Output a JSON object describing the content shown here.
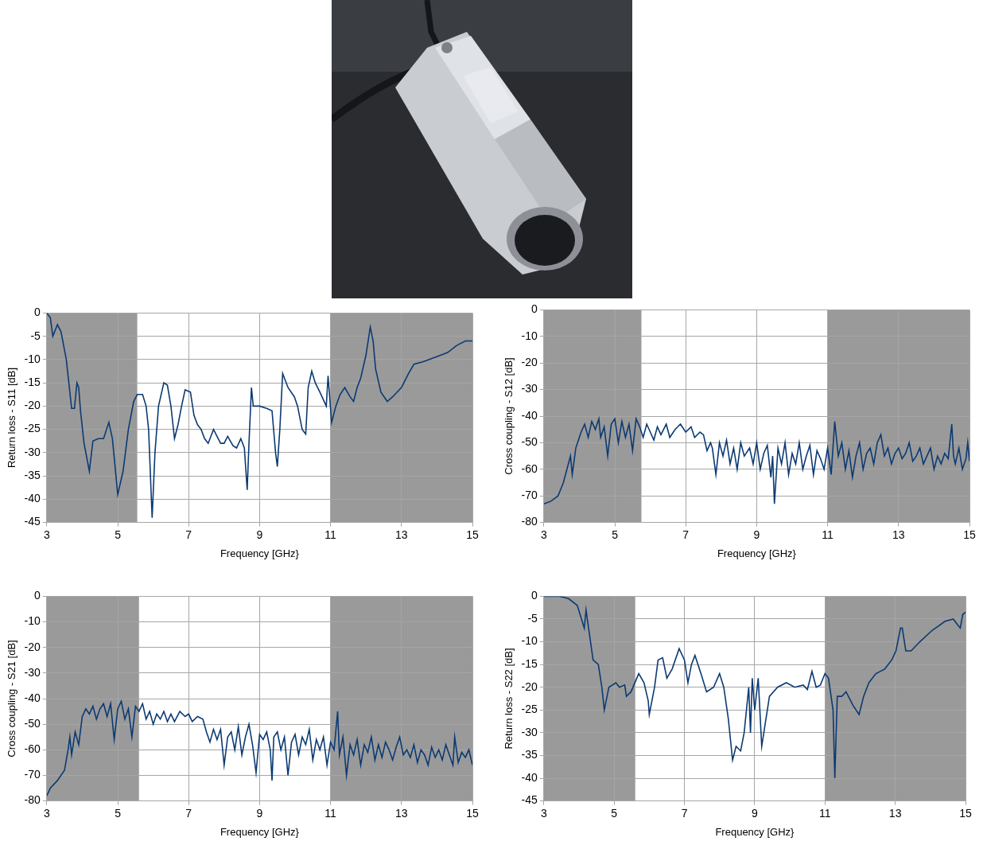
{
  "chart_data": [
    {
      "type": "line",
      "x_label": "Frequency [GHz}",
      "y_label": "Return loss - S11 [dB]",
      "color": "#0b3a73",
      "grid": true,
      "xlim": [
        3,
        15
      ],
      "xticks": [
        3,
        5,
        7,
        9,
        11,
        13,
        15
      ],
      "ylim": [
        -45,
        0
      ],
      "yticks": [
        0,
        -5,
        -10,
        -15,
        -20,
        -25,
        -30,
        -35,
        -40,
        -45
      ],
      "shaded_bands": [
        [
          3,
          5.55
        ],
        [
          11,
          15
        ]
      ],
      "x": [
        3.0,
        3.1,
        3.17,
        3.3,
        3.4,
        3.55,
        3.7,
        3.78,
        3.85,
        3.9,
        3.95,
        4.05,
        4.2,
        4.3,
        4.45,
        4.6,
        4.75,
        4.85,
        5.0,
        5.15,
        5.3,
        5.45,
        5.55,
        5.7,
        5.8,
        5.87,
        5.97,
        6.05,
        6.15,
        6.3,
        6.4,
        6.5,
        6.6,
        6.7,
        6.8,
        6.9,
        7.05,
        7.15,
        7.25,
        7.35,
        7.45,
        7.55,
        7.7,
        7.9,
        8.0,
        8.1,
        8.25,
        8.35,
        8.47,
        8.57,
        8.65,
        8.7,
        8.77,
        8.82,
        9.0,
        9.2,
        9.35,
        9.45,
        9.5,
        9.57,
        9.65,
        9.8,
        9.98,
        10.07,
        10.2,
        10.3,
        10.37,
        10.47,
        10.57,
        10.7,
        10.88,
        10.93,
        11.03,
        11.15,
        11.27,
        11.4,
        11.55,
        11.65,
        11.75,
        11.85,
        12.0,
        12.12,
        12.2,
        12.27,
        12.42,
        12.6,
        12.75,
        13.0,
        13.2,
        13.35,
        13.6,
        13.95,
        14.3,
        14.55,
        14.8,
        15.0
      ],
      "values": [
        0,
        -1,
        -5,
        -2.5,
        -4,
        -10,
        -20.5,
        -20.5,
        -15,
        -16,
        -21,
        -28,
        -34,
        -27.5,
        -27,
        -27,
        -23.5,
        -27,
        -39,
        -34,
        -25,
        -19,
        -17.5,
        -17.5,
        -20,
        -25,
        -44,
        -30,
        -20,
        -15,
        -15.5,
        -20,
        -27,
        -24,
        -20,
        -16.5,
        -17,
        -22,
        -24,
        -25,
        -27,
        -28,
        -25,
        -28,
        -28,
        -26.5,
        -28.5,
        -29,
        -27,
        -29,
        -38,
        -28,
        -16,
        -20,
        -20,
        -20.5,
        -21,
        -30,
        -33,
        -25,
        -13,
        -16,
        -18,
        -20,
        -25,
        -26,
        -16,
        -12.5,
        -15,
        -17,
        -20,
        -13.5,
        -23.5,
        -20,
        -17.5,
        -16,
        -18,
        -19,
        -16,
        -14,
        -9,
        -3,
        -6,
        -12,
        -17,
        -19,
        -18,
        -16,
        -13,
        -11,
        -10.5,
        -9.5,
        -8.5,
        -7,
        -6,
        -6
      ]
    },
    {
      "type": "line",
      "x_label": "Frequency [GHz}",
      "y_label": "Cross coupling - S12 [dB]",
      "color": "#0b3a73",
      "grid": true,
      "xlim": [
        3,
        15
      ],
      "xticks": [
        3,
        5,
        7,
        9,
        11,
        13,
        15
      ],
      "ylim": [
        -80,
        0
      ],
      "yticks": [
        0,
        -10,
        -20,
        -30,
        -40,
        -50,
        -60,
        -70,
        -80
      ],
      "shaded_bands": [
        [
          3,
          5.75
        ],
        [
          11,
          15
        ]
      ],
      "x": [
        3.0,
        3.2,
        3.4,
        3.55,
        3.65,
        3.75,
        3.8,
        3.9,
        4.0,
        4.05,
        4.15,
        4.25,
        4.35,
        4.45,
        4.55,
        4.6,
        4.7,
        4.8,
        4.9,
        5.0,
        5.1,
        5.2,
        5.3,
        5.4,
        5.5,
        5.6,
        5.7,
        5.8,
        5.9,
        6.0,
        6.1,
        6.2,
        6.3,
        6.45,
        6.55,
        6.7,
        6.85,
        7.0,
        7.15,
        7.25,
        7.4,
        7.5,
        7.6,
        7.7,
        7.75,
        7.85,
        7.95,
        8.05,
        8.15,
        8.25,
        8.35,
        8.45,
        8.55,
        8.65,
        8.8,
        8.9,
        9.0,
        9.1,
        9.2,
        9.3,
        9.4,
        9.45,
        9.5,
        9.6,
        9.7,
        9.8,
        9.9,
        10.0,
        10.1,
        10.2,
        10.3,
        10.4,
        10.5,
        10.6,
        10.7,
        10.8,
        10.9,
        11.0,
        11.1,
        11.2,
        11.3,
        11.4,
        11.5,
        11.6,
        11.7,
        11.8,
        11.9,
        12.0,
        12.1,
        12.2,
        12.3,
        12.4,
        12.5,
        12.6,
        12.7,
        12.8,
        12.9,
        13.0,
        13.1,
        13.2,
        13.3,
        13.4,
        13.5,
        13.6,
        13.7,
        13.8,
        13.9,
        14.0,
        14.1,
        14.2,
        14.3,
        14.4,
        14.5,
        14.55,
        14.6,
        14.7,
        14.8,
        14.9,
        14.95,
        15.0
      ],
      "values": [
        -73,
        -72,
        -70,
        -65,
        -60,
        -55,
        -62,
        -52,
        -48,
        -46,
        -43,
        -48,
        -42,
        -45,
        -41,
        -48,
        -44,
        -55,
        -43,
        -41,
        -50,
        -42,
        -48,
        -43,
        -53,
        -41,
        -44,
        -48,
        -43,
        -46,
        -49,
        -44,
        -47,
        -43,
        -48,
        -45,
        -43,
        -46,
        -44,
        -48,
        -46,
        -47,
        -53,
        -50,
        -52,
        -62,
        -50,
        -55,
        -49,
        -58,
        -52,
        -60,
        -50,
        -55,
        -52,
        -58,
        -50,
        -60,
        -54,
        -51,
        -63,
        -55,
        -73,
        -52,
        -58,
        -50,
        -62,
        -54,
        -58,
        -50,
        -60,
        -55,
        -51,
        -62,
        -53,
        -56,
        -60,
        -52,
        -62,
        -42,
        -55,
        -50,
        -60,
        -53,
        -63,
        -55,
        -50,
        -60,
        -54,
        -52,
        -58,
        -50,
        -47,
        -55,
        -52,
        -58,
        -54,
        -52,
        -56,
        -54,
        -50,
        -57,
        -55,
        -52,
        -58,
        -55,
        -52,
        -60,
        -55,
        -58,
        -54,
        -56,
        -43,
        -55,
        -58,
        -52,
        -60,
        -56,
        -50,
        -57
      ]
    },
    {
      "type": "line",
      "x_label": "Frequency [GHz}",
      "y_label": "Cross coupling - S21 [dB]",
      "color": "#0b3a73",
      "grid": true,
      "xlim": [
        3,
        15
      ],
      "xticks": [
        3,
        5,
        7,
        9,
        11,
        13,
        15
      ],
      "ylim": [
        -80,
        0
      ],
      "yticks": [
        0,
        -10,
        -20,
        -30,
        -40,
        -50,
        -60,
        -70,
        -80
      ],
      "shaded_bands": [
        [
          3,
          5.6
        ],
        [
          11,
          15
        ]
      ],
      "x": [
        3.0,
        3.1,
        3.3,
        3.5,
        3.6,
        3.65,
        3.7,
        3.8,
        3.9,
        4.0,
        4.1,
        4.2,
        4.3,
        4.4,
        4.5,
        4.6,
        4.7,
        4.8,
        4.9,
        5.0,
        5.1,
        5.2,
        5.3,
        5.4,
        5.5,
        5.6,
        5.7,
        5.8,
        5.9,
        6.0,
        6.1,
        6.2,
        6.3,
        6.4,
        6.5,
        6.6,
        6.75,
        6.9,
        7.0,
        7.1,
        7.25,
        7.4,
        7.5,
        7.6,
        7.7,
        7.8,
        7.9,
        8.0,
        8.1,
        8.2,
        8.3,
        8.4,
        8.5,
        8.6,
        8.7,
        8.8,
        8.9,
        9.0,
        9.1,
        9.2,
        9.3,
        9.35,
        9.4,
        9.5,
        9.6,
        9.7,
        9.8,
        9.9,
        10.0,
        10.1,
        10.2,
        10.3,
        10.4,
        10.5,
        10.6,
        10.7,
        10.8,
        10.9,
        11.0,
        11.1,
        11.2,
        11.25,
        11.35,
        11.45,
        11.55,
        11.65,
        11.75,
        11.85,
        11.95,
        12.05,
        12.15,
        12.25,
        12.35,
        12.45,
        12.55,
        12.65,
        12.75,
        12.85,
        12.95,
        13.05,
        13.15,
        13.25,
        13.35,
        13.45,
        13.55,
        13.65,
        13.75,
        13.85,
        13.95,
        14.05,
        14.15,
        14.25,
        14.35,
        14.45,
        14.5,
        14.6,
        14.7,
        14.8,
        14.9,
        15.0
      ],
      "values": [
        -78,
        -75,
        -72,
        -68,
        -60,
        -55,
        -62,
        -53,
        -58,
        -47,
        -44,
        -46,
        -43,
        -48,
        -44,
        -42,
        -47,
        -42,
        -56,
        -44,
        -41,
        -48,
        -44,
        -55,
        -43,
        -45,
        -42,
        -48,
        -45,
        -50,
        -46,
        -48,
        -45,
        -49,
        -46,
        -49,
        -45,
        -47,
        -46,
        -49,
        -47,
        -48,
        -53,
        -57,
        -52,
        -56,
        -52,
        -66,
        -55,
        -53,
        -60,
        -51,
        -62,
        -55,
        -50,
        -58,
        -69,
        -54,
        -56,
        -53,
        -60,
        -72,
        -55,
        -53,
        -60,
        -55,
        -70,
        -57,
        -54,
        -62,
        -55,
        -58,
        -52,
        -64,
        -56,
        -60,
        -55,
        -66,
        -57,
        -60,
        -45,
        -62,
        -55,
        -70,
        -58,
        -62,
        -56,
        -66,
        -58,
        -61,
        -55,
        -64,
        -58,
        -63,
        -57,
        -60,
        -64,
        -59,
        -55,
        -62,
        -60,
        -63,
        -58,
        -65,
        -60,
        -62,
        -66,
        -59,
        -63,
        -60,
        -64,
        -58,
        -62,
        -66,
        -55,
        -65,
        -61,
        -63,
        -60,
        -66
      ]
    },
    {
      "type": "line",
      "x_label": "Frequency [GHz}",
      "y_label": "Return loss - S22 [dB]",
      "color": "#0b3a73",
      "grid": true,
      "xlim": [
        3,
        15
      ],
      "xticks": [
        3,
        5,
        7,
        9,
        11,
        13,
        15
      ],
      "ylim": [
        -45,
        0
      ],
      "yticks": [
        0,
        -5,
        -10,
        -15,
        -20,
        -25,
        -30,
        -35,
        -40,
        -45
      ],
      "shaded_bands": [
        [
          3,
          5.6
        ],
        [
          11,
          15
        ]
      ],
      "x": [
        3.0,
        3.45,
        3.7,
        3.95,
        4.15,
        4.2,
        4.4,
        4.55,
        4.65,
        4.72,
        4.85,
        5.05,
        5.15,
        5.3,
        5.35,
        5.48,
        5.7,
        5.85,
        5.97,
        6.0,
        6.15,
        6.25,
        6.38,
        6.5,
        6.65,
        6.85,
        7.0,
        7.1,
        7.2,
        7.3,
        7.47,
        7.63,
        7.83,
        8.0,
        8.12,
        8.25,
        8.33,
        8.37,
        8.47,
        8.6,
        8.7,
        8.83,
        8.88,
        8.93,
        9.0,
        9.1,
        9.2,
        9.3,
        9.42,
        9.65,
        9.9,
        10.14,
        10.38,
        10.5,
        10.63,
        10.75,
        10.87,
        11.0,
        11.1,
        11.23,
        11.28,
        11.35,
        11.48,
        11.6,
        11.8,
        11.97,
        12.1,
        12.25,
        12.45,
        12.7,
        12.9,
        13.02,
        13.15,
        13.2,
        13.3,
        13.45,
        13.7,
        14.05,
        14.42,
        14.65,
        14.75,
        14.85,
        14.92,
        15.0
      ],
      "values": [
        0,
        0,
        -0.5,
        -2,
        -7,
        -3,
        -14,
        -15,
        -20,
        -25,
        -20,
        -19,
        -20,
        -19.5,
        -22,
        -21,
        -17,
        -19,
        -23,
        -26,
        -20,
        -14,
        -13.5,
        -18,
        -16,
        -11.5,
        -14,
        -19,
        -15,
        -13,
        -17,
        -21,
        -20,
        -17,
        -20,
        -27,
        -33,
        -36,
        -33,
        -34,
        -30,
        -20,
        -30,
        -18,
        -25,
        -18,
        -33,
        -28,
        -22,
        -20,
        -19,
        -20,
        -19.5,
        -20.5,
        -16.5,
        -20,
        -19.5,
        -17,
        -18,
        -25,
        -40,
        -22,
        -22,
        -21,
        -24,
        -26,
        -22,
        -19,
        -17,
        -16,
        -14,
        -12,
        -7,
        -7,
        -12,
        -12,
        -10,
        -7.5,
        -5.5,
        -5,
        -6,
        -7,
        -4,
        -3.5
      ]
    }
  ]
}
